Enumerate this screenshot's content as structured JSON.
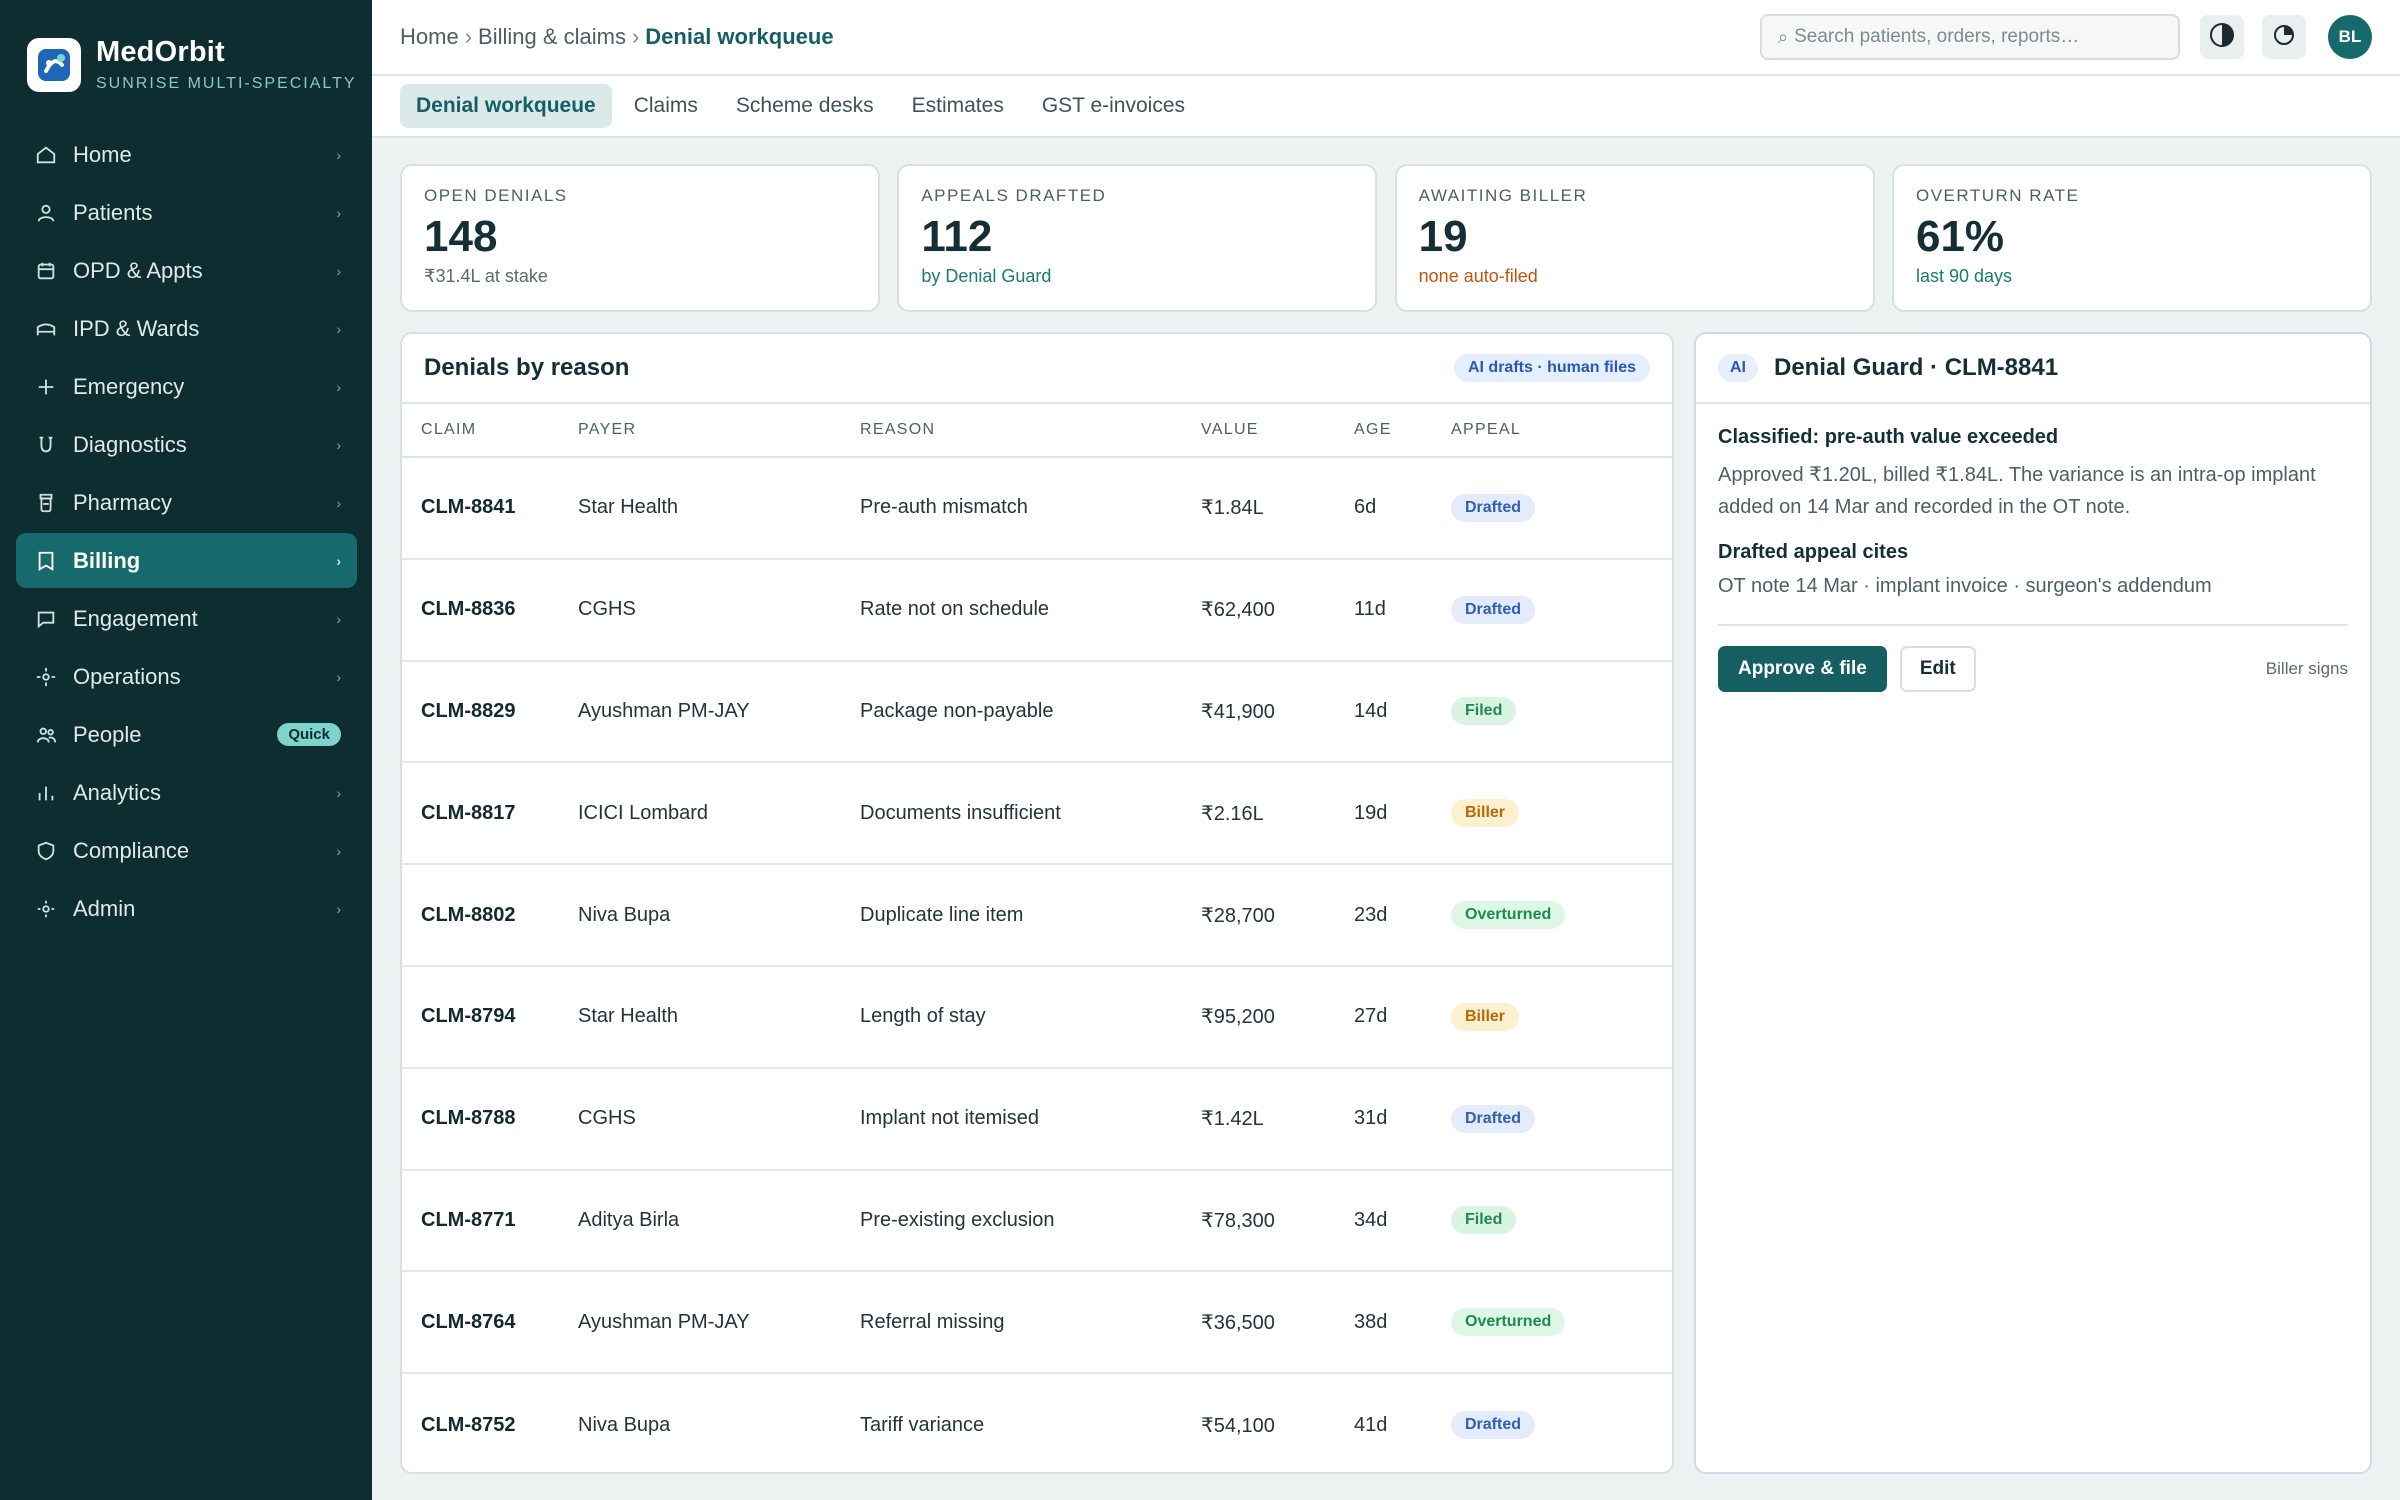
{
  "brand": {
    "name": "MedOrbit",
    "subtitle": "SUNRISE MULTI-SPECIALTY"
  },
  "sidebar": {
    "items": [
      {
        "label": "Home",
        "icon": "home-icon"
      },
      {
        "label": "Patients",
        "icon": "user-icon"
      },
      {
        "label": "OPD & Appts",
        "icon": "calendar-icon"
      },
      {
        "label": "IPD & Wards",
        "icon": "bed-icon"
      },
      {
        "label": "Emergency",
        "icon": "plus-icon"
      },
      {
        "label": "Diagnostics",
        "icon": "flask-icon"
      },
      {
        "label": "Pharmacy",
        "icon": "pill-bottle-icon"
      },
      {
        "label": "Billing",
        "icon": "receipt-icon",
        "active": true
      },
      {
        "label": "Engagement",
        "icon": "chat-icon"
      },
      {
        "label": "Operations",
        "icon": "crosshair-icon"
      },
      {
        "label": "People",
        "icon": "people-icon",
        "badge": "Quick"
      },
      {
        "label": "Analytics",
        "icon": "bar-chart-icon"
      },
      {
        "label": "Compliance",
        "icon": "shield-icon"
      },
      {
        "label": "Admin",
        "icon": "settings-icon"
      }
    ]
  },
  "breadcrumb": {
    "home": "Home",
    "section": "Billing & claims",
    "current": "Denial workqueue",
    "separator": "›"
  },
  "search": {
    "placeholder": "Search patients, orders, reports…"
  },
  "user": {
    "initials": "BL"
  },
  "tabs": [
    "Denial workqueue",
    "Claims",
    "Scheme desks",
    "Estimates",
    "GST e-invoices"
  ],
  "kpis": [
    {
      "label": "OPEN DENIALS",
      "value": "148",
      "sub": "₹31.4L at stake",
      "tone": "muted"
    },
    {
      "label": "APPEALS DRAFTED",
      "value": "112",
      "sub": "by Denial Guard",
      "tone": "teal"
    },
    {
      "label": "AWAITING BILLER",
      "value": "19",
      "sub": "none auto-filed",
      "tone": "orange"
    },
    {
      "label": "OVERTURN RATE",
      "value": "61%",
      "sub": "last 90 days",
      "tone": "teal"
    }
  ],
  "table": {
    "title": "Denials by reason",
    "pill": "AI drafts · human files",
    "columns": [
      "CLAIM",
      "PAYER",
      "REASON",
      "VALUE",
      "AGE",
      "APPEAL"
    ],
    "rows": [
      {
        "claim": "CLM-8841",
        "payer": "Star Health",
        "reason": "Pre-auth mismatch",
        "value": "₹1.84L",
        "age": "6d",
        "appeal": "Drafted"
      },
      {
        "claim": "CLM-8836",
        "payer": "CGHS",
        "reason": "Rate not on schedule",
        "value": "₹62,400",
        "age": "11d",
        "appeal": "Drafted"
      },
      {
        "claim": "CLM-8829",
        "payer": "Ayushman PM-JAY",
        "reason": "Package non-payable",
        "value": "₹41,900",
        "age": "14d",
        "appeal": "Filed"
      },
      {
        "claim": "CLM-8817",
        "payer": "ICICI Lombard",
        "reason": "Documents insufficient",
        "value": "₹2.16L",
        "age": "19d",
        "appeal": "Biller"
      },
      {
        "claim": "CLM-8802",
        "payer": "Niva Bupa",
        "reason": "Duplicate line item",
        "value": "₹28,700",
        "age": "23d",
        "appeal": "Overturned"
      },
      {
        "claim": "CLM-8794",
        "payer": "Star Health",
        "reason": "Length of stay",
        "value": "₹95,200",
        "age": "27d",
        "appeal": "Biller"
      },
      {
        "claim": "CLM-8788",
        "payer": "CGHS",
        "reason": "Implant not itemised",
        "value": "₹1.42L",
        "age": "31d",
        "appeal": "Drafted"
      },
      {
        "claim": "CLM-8771",
        "payer": "Aditya Birla",
        "reason": "Pre-existing exclusion",
        "value": "₹78,300",
        "age": "34d",
        "appeal": "Filed"
      },
      {
        "claim": "CLM-8764",
        "payer": "Ayushman PM-JAY",
        "reason": "Referral missing",
        "value": "₹36,500",
        "age": "38d",
        "appeal": "Overturned"
      },
      {
        "claim": "CLM-8752",
        "payer": "Niva Bupa",
        "reason": "Tariff variance",
        "value": "₹54,100",
        "age": "41d",
        "appeal": "Drafted"
      }
    ]
  },
  "panel": {
    "tag": "AI",
    "title": "Denial Guard · CLM-8841",
    "classified": "Classified: pre-auth value exceeded",
    "explanation": "Approved ₹1.20L, billed ₹1.84L. The variance is an intra-op implant added on 14 Mar and recorded in the OT note.",
    "cites_heading": "Drafted appeal cites",
    "cites": "OT note 14 Mar · implant invoice · surgeon's addendum",
    "approve_label": "Approve & file",
    "edit_label": "Edit",
    "signs": "Biller signs"
  },
  "colors": {
    "sidebar": "#0d2d30",
    "accent": "#166a6d",
    "primary": "#155f63"
  }
}
